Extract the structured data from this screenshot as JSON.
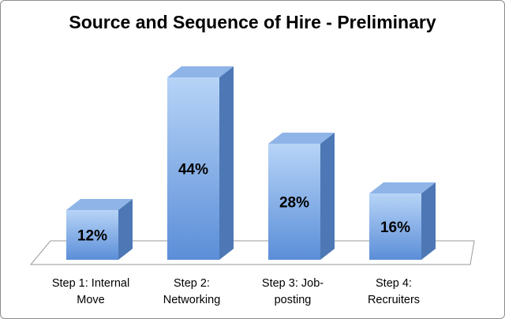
{
  "chart_data": {
    "type": "bar",
    "title": "Source and Sequence of Hire - Preliminary",
    "categories": [
      [
        "Step 1: Internal",
        "Move"
      ],
      [
        "Step 2:",
        "Networking"
      ],
      [
        "Step 3: Job-",
        "posting"
      ],
      [
        "Step 4:",
        "Recruiters"
      ]
    ],
    "values": [
      12,
      44,
      28,
      16
    ],
    "data_labels": [
      "12%",
      "44%",
      "28%",
      "16%"
    ],
    "ylim": [
      0,
      50
    ],
    "grid": false,
    "style": "3d-column",
    "colors": {
      "front_top": "#b7d4f7",
      "front_bottom": "#5b8ed8",
      "side": "#4d78b5",
      "top": "#8fb4e8",
      "floor": "#ffffff",
      "floor_stroke": "#9a9a9a"
    }
  }
}
